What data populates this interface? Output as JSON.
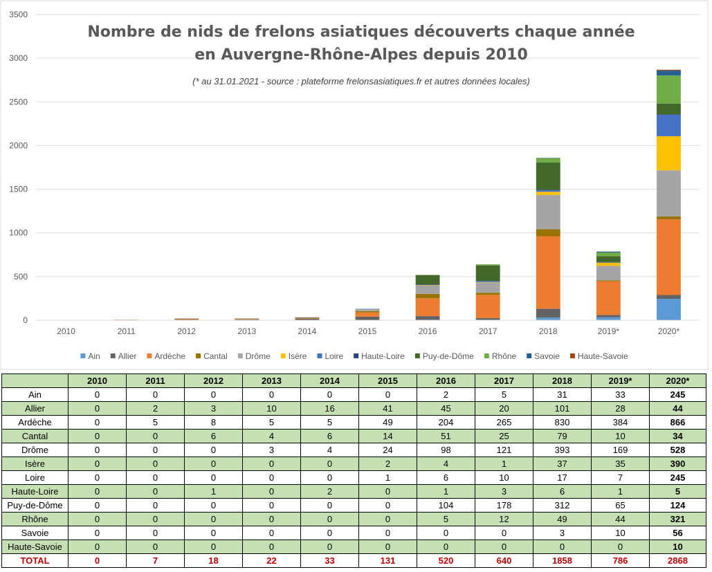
{
  "chart_data": {
    "type": "bar",
    "stacked": true,
    "title": "Nombre de nids de frelons asiatiques découverts chaque année",
    "title_line2": "en Auvergne-Rhône-Alpes depuis 2010",
    "subtitle": "(* au 31.01.2021 - source : plateforme frelonsasiatiques.fr et autres données locales)",
    "categories": [
      "2010",
      "2011",
      "2012",
      "2013",
      "2014",
      "2015",
      "2016",
      "2017",
      "2018",
      "2019*",
      "2020*"
    ],
    "ylim": [
      0,
      3500
    ],
    "yticks": [
      "0",
      "500",
      "1000",
      "1500",
      "2000",
      "2500",
      "3000",
      "3500"
    ],
    "legend_position": "bottom",
    "series": [
      {
        "name": "Ain",
        "color": "#5b9bd5",
        "values": [
          0,
          0,
          0,
          0,
          0,
          0,
          2,
          5,
          31,
          33,
          245
        ]
      },
      {
        "name": "Allier",
        "color": "#636363",
        "values": [
          0,
          2,
          3,
          10,
          16,
          41,
          45,
          20,
          101,
          28,
          44
        ]
      },
      {
        "name": "Ardèche",
        "color": "#ed7d31",
        "values": [
          0,
          5,
          8,
          5,
          5,
          49,
          204,
          265,
          830,
          384,
          866
        ]
      },
      {
        "name": "Cantal",
        "color": "#997300",
        "values": [
          0,
          0,
          6,
          4,
          6,
          14,
          51,
          25,
          79,
          10,
          34
        ]
      },
      {
        "name": "Drôme",
        "color": "#a5a5a5",
        "values": [
          0,
          0,
          0,
          3,
          4,
          24,
          98,
          121,
          393,
          169,
          528
        ]
      },
      {
        "name": "Isère",
        "color": "#ffc000",
        "values": [
          0,
          0,
          0,
          0,
          0,
          2,
          4,
          1,
          37,
          35,
          390
        ]
      },
      {
        "name": "Loire",
        "color": "#4472c4",
        "values": [
          0,
          0,
          0,
          0,
          0,
          1,
          6,
          10,
          17,
          7,
          245
        ]
      },
      {
        "name": "Haute-Loire",
        "color": "#264478",
        "values": [
          0,
          0,
          1,
          0,
          2,
          0,
          1,
          3,
          6,
          1,
          5
        ]
      },
      {
        "name": "Puy-de-Dôme",
        "color": "#43682b",
        "values": [
          0,
          0,
          0,
          0,
          0,
          0,
          104,
          178,
          312,
          65,
          124
        ]
      },
      {
        "name": "Rhône",
        "color": "#70ad47",
        "values": [
          0,
          0,
          0,
          0,
          0,
          0,
          5,
          12,
          49,
          44,
          321
        ]
      },
      {
        "name": "Savoie",
        "color": "#255e91",
        "values": [
          0,
          0,
          0,
          0,
          0,
          0,
          0,
          0,
          3,
          10,
          56
        ]
      },
      {
        "name": "Haute-Savoie",
        "color": "#9e480e",
        "values": [
          0,
          0,
          0,
          0,
          0,
          0,
          0,
          0,
          0,
          0,
          10
        ]
      }
    ]
  },
  "table": {
    "headers": [
      "2010",
      "2011",
      "2012",
      "2013",
      "2014",
      "2015",
      "2016",
      "2017",
      "2018",
      "2019*",
      "2020*"
    ],
    "rows": [
      {
        "label": "Ain",
        "values": [
          "0",
          "0",
          "0",
          "0",
          "0",
          "0",
          "2",
          "5",
          "31",
          "33",
          "245"
        ]
      },
      {
        "label": "Allier",
        "values": [
          "0",
          "2",
          "3",
          "10",
          "16",
          "41",
          "45",
          "20",
          "101",
          "28",
          "44"
        ]
      },
      {
        "label": "Ardèche",
        "values": [
          "0",
          "5",
          "8",
          "5",
          "5",
          "49",
          "204",
          "265",
          "830",
          "384",
          "866"
        ]
      },
      {
        "label": "Cantal",
        "values": [
          "0",
          "0",
          "6",
          "4",
          "6",
          "14",
          "51",
          "25",
          "79",
          "10",
          "34"
        ]
      },
      {
        "label": "Drôme",
        "values": [
          "0",
          "0",
          "0",
          "3",
          "4",
          "24",
          "98",
          "121",
          "393",
          "169",
          "528"
        ]
      },
      {
        "label": "Isère",
        "values": [
          "0",
          "0",
          "0",
          "0",
          "0",
          "2",
          "4",
          "1",
          "37",
          "35",
          "390"
        ]
      },
      {
        "label": "Loire",
        "values": [
          "0",
          "0",
          "0",
          "0",
          "0",
          "1",
          "6",
          "10",
          "17",
          "7",
          "245"
        ]
      },
      {
        "label": "Haute-Loire",
        "values": [
          "0",
          "0",
          "1",
          "0",
          "2",
          "0",
          "1",
          "3",
          "6",
          "1",
          "5"
        ]
      },
      {
        "label": "Puy-de-Dôme",
        "values": [
          "0",
          "0",
          "0",
          "0",
          "0",
          "0",
          "104",
          "178",
          "312",
          "65",
          "124"
        ]
      },
      {
        "label": "Rhône",
        "values": [
          "0",
          "0",
          "0",
          "0",
          "0",
          "0",
          "5",
          "12",
          "49",
          "44",
          "321"
        ]
      },
      {
        "label": "Savoie",
        "values": [
          "0",
          "0",
          "0",
          "0",
          "0",
          "0",
          "0",
          "0",
          "3",
          "10",
          "56"
        ]
      },
      {
        "label": "Haute-Savoie",
        "values": [
          "0",
          "0",
          "0",
          "0",
          "0",
          "0",
          "0",
          "0",
          "0",
          "0",
          "10"
        ]
      }
    ],
    "total": {
      "label": "TOTAL",
      "values": [
        "0",
        "7",
        "18",
        "22",
        "33",
        "131",
        "520",
        "640",
        "1858",
        "786",
        "2868"
      ]
    }
  }
}
